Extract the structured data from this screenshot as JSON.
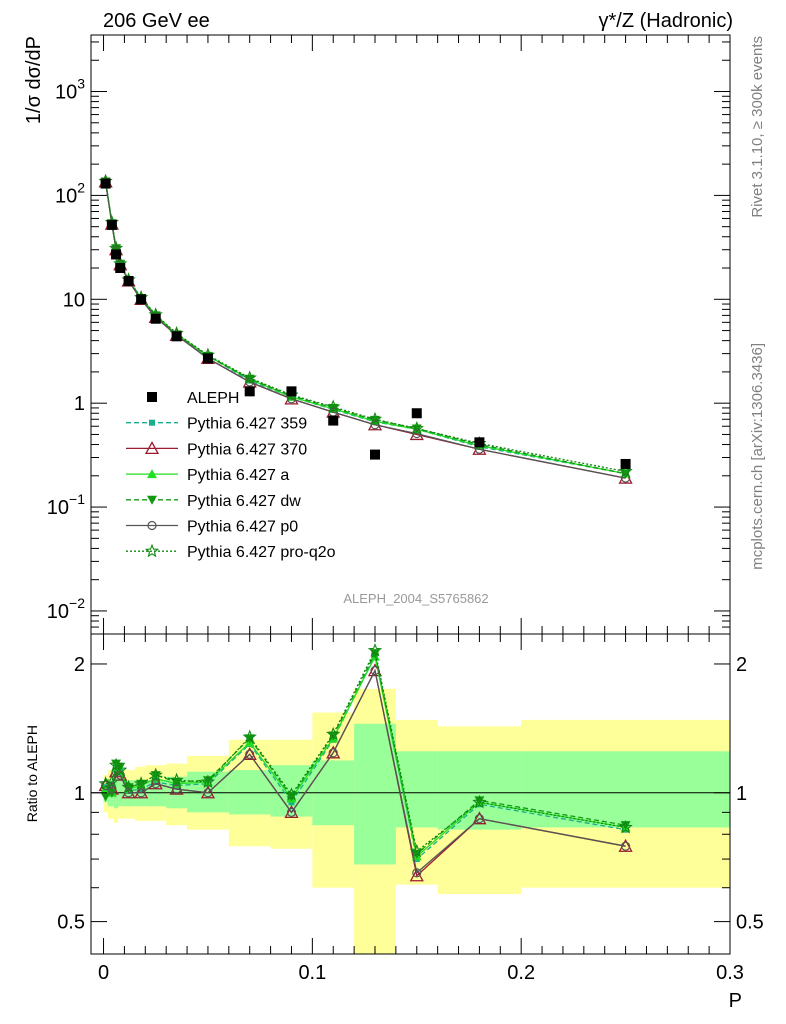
{
  "header": {
    "left": "206 GeV ee",
    "right": "γ*/Z (Hadronic)"
  },
  "side_labels": {
    "rivet": "Rivet 3.1.10, ≥ 300k events",
    "mcplots": "mcplots.cern.ch [arXiv:1306.3436]"
  },
  "analysis_id": "ALEPH_2004_S5765862",
  "colors": {
    "data": "#000000",
    "p359": "#1aae8c",
    "p370": "#9b1b30",
    "pa": "#22dd22",
    "pdw": "#119911",
    "pp0": "#555555",
    "ppro": "#118811",
    "band_inner": "#99ff99",
    "band_outer": "#ffff99"
  },
  "chart_data": [
    {
      "type": "scatter",
      "name": "main",
      "ylabel": "1/σ  dσ/dP",
      "yscale": "log",
      "ylim": [
        0.006,
        3500
      ],
      "xlim": [
        -0.006,
        0.3
      ],
      "ytick_labels": [
        "10^-2",
        "10^-1",
        "1",
        "10",
        "10^2",
        "10^3"
      ],
      "data": {
        "name": "ALEPH",
        "x": [
          0.001,
          0.004,
          0.006,
          0.008,
          0.012,
          0.018,
          0.025,
          0.035,
          0.05,
          0.07,
          0.09,
          0.11,
          0.13,
          0.15,
          0.18,
          0.25
        ],
        "y": [
          130,
          52,
          27,
          20,
          15,
          10,
          6.5,
          4.4,
          2.7,
          1.3,
          1.3,
          0.68,
          0.32,
          0.8,
          0.42,
          0.26
        ]
      },
      "series": [
        {
          "name": "Pythia 6.427 359",
          "key": "p359",
          "line": "dash",
          "marker": "square-small",
          "y": [
            135,
            54,
            31,
            22,
            15.2,
            10.2,
            6.9,
            4.6,
            2.85,
            1.65,
            1.15,
            0.87,
            0.66,
            0.56,
            0.38,
            0.21
          ]
        },
        {
          "name": "Pythia 6.427 370",
          "key": "p370",
          "line": "solid",
          "marker": "triangle-open",
          "y": [
            135,
            53,
            30,
            21.5,
            15,
            10,
            6.7,
            4.5,
            2.7,
            1.6,
            1.1,
            0.82,
            0.62,
            0.5,
            0.36,
            0.19
          ]
        },
        {
          "name": "Pythia 6.427 a",
          "key": "pa",
          "line": "solid",
          "marker": "triangle-filled",
          "y": [
            136,
            54,
            31,
            22,
            15.3,
            10.3,
            7,
            4.6,
            2.85,
            1.7,
            1.15,
            0.88,
            0.67,
            0.56,
            0.39,
            0.21
          ]
        },
        {
          "name": "Pythia 6.427 dw",
          "key": "pdw",
          "line": "dash",
          "marker": "triangle-down",
          "y": [
            136,
            54,
            31,
            22,
            15.3,
            10.3,
            7,
            4.6,
            2.85,
            1.72,
            1.18,
            0.9,
            0.69,
            0.57,
            0.4,
            0.21
          ]
        },
        {
          "name": "Pythia 6.427 p0",
          "key": "pp0",
          "line": "solid",
          "marker": "circle-open",
          "y": [
            135,
            53,
            30,
            21.5,
            15,
            10,
            6.7,
            4.5,
            2.7,
            1.6,
            1.1,
            0.82,
            0.62,
            0.51,
            0.36,
            0.19
          ]
        },
        {
          "name": "Pythia 6.427 pro-q2o",
          "key": "ppro",
          "line": "dot",
          "marker": "star",
          "y": [
            137,
            55,
            31,
            22,
            15.4,
            10.4,
            7.1,
            4.7,
            2.9,
            1.75,
            1.2,
            0.92,
            0.7,
            0.57,
            0.41,
            0.22
          ]
        }
      ],
      "legend_location": "center-left"
    },
    {
      "type": "line",
      "name": "ratio",
      "ylabel": "Ratio to ALEPH",
      "xlabel": "P",
      "yscale": "log",
      "ylim": [
        0.42,
        2.35
      ],
      "xlim": [
        -0.006,
        0.3
      ],
      "xtick_labels": [
        "0",
        "0.1",
        "0.2",
        "0.3"
      ],
      "ytick_labels": [
        "0.5",
        "1",
        "2"
      ],
      "bands": {
        "x_edges": [
          0,
          0.002,
          0.005,
          0.007,
          0.01,
          0.015,
          0.02,
          0.03,
          0.04,
          0.06,
          0.08,
          0.1,
          0.12,
          0.14,
          0.16,
          0.2,
          0.3
        ],
        "inner_low": [
          0.95,
          0.93,
          0.92,
          0.93,
          0.93,
          0.93,
          0.93,
          0.92,
          0.9,
          0.89,
          0.88,
          0.84,
          0.68,
          0.83,
          0.82,
          0.83
        ],
        "inner_high": [
          1.05,
          1.07,
          1.08,
          1.08,
          1.07,
          1.07,
          1.07,
          1.09,
          1.12,
          1.13,
          1.16,
          1.19,
          1.45,
          1.25,
          1.25,
          1.25
        ],
        "outer_low": [
          0.9,
          0.87,
          0.85,
          0.87,
          0.87,
          0.86,
          0.86,
          0.84,
          0.82,
          0.75,
          0.74,
          0.6,
          0.36,
          0.61,
          0.58,
          0.6
        ],
        "outer_high": [
          1.1,
          1.13,
          1.15,
          1.14,
          1.13,
          1.15,
          1.16,
          1.17,
          1.22,
          1.33,
          1.33,
          1.54,
          1.75,
          1.48,
          1.43,
          1.48
        ]
      },
      "x": [
        0.001,
        0.004,
        0.006,
        0.008,
        0.012,
        0.018,
        0.025,
        0.035,
        0.05,
        0.07,
        0.09,
        0.11,
        0.13,
        0.15,
        0.18,
        0.25
      ],
      "series": [
        {
          "key": "p359",
          "y": [
            1.03,
            1.04,
            1.15,
            1.12,
            1.01,
            1.02,
            1.06,
            1.04,
            1.05,
            1.3,
            0.95,
            1.33,
            2.1,
            0.7,
            0.94,
            0.82
          ]
        },
        {
          "key": "p370",
          "y": [
            1.04,
            1.02,
            1.12,
            1.1,
            1.0,
            1.0,
            1.05,
            1.02,
            1.0,
            1.23,
            0.9,
            1.24,
            1.93,
            0.64,
            0.87,
            0.75
          ]
        },
        {
          "key": "pa",
          "y": [
            1.02,
            1.0,
            1.14,
            1.12,
            1.02,
            1.04,
            1.08,
            1.05,
            1.06,
            1.31,
            0.97,
            1.34,
            2.08,
            0.71,
            0.95,
            0.83
          ]
        },
        {
          "key": "pdw",
          "y": [
            0.98,
            1.0,
            1.17,
            1.15,
            1.03,
            1.05,
            1.1,
            1.06,
            1.07,
            1.34,
            0.98,
            1.36,
            2.12,
            0.72,
            0.96,
            0.84
          ]
        },
        {
          "key": "pp0",
          "y": [
            1.04,
            1.02,
            1.12,
            1.1,
            1.0,
            1.0,
            1.05,
            1.02,
            1.0,
            1.23,
            0.9,
            1.24,
            1.93,
            0.65,
            0.87,
            0.75
          ]
        },
        {
          "key": "ppro",
          "y": [
            1.05,
            1.06,
            1.16,
            1.13,
            1.03,
            1.05,
            1.1,
            1.07,
            1.06,
            1.35,
            0.99,
            1.37,
            2.15,
            0.73,
            0.95,
            0.83
          ]
        }
      ]
    }
  ]
}
